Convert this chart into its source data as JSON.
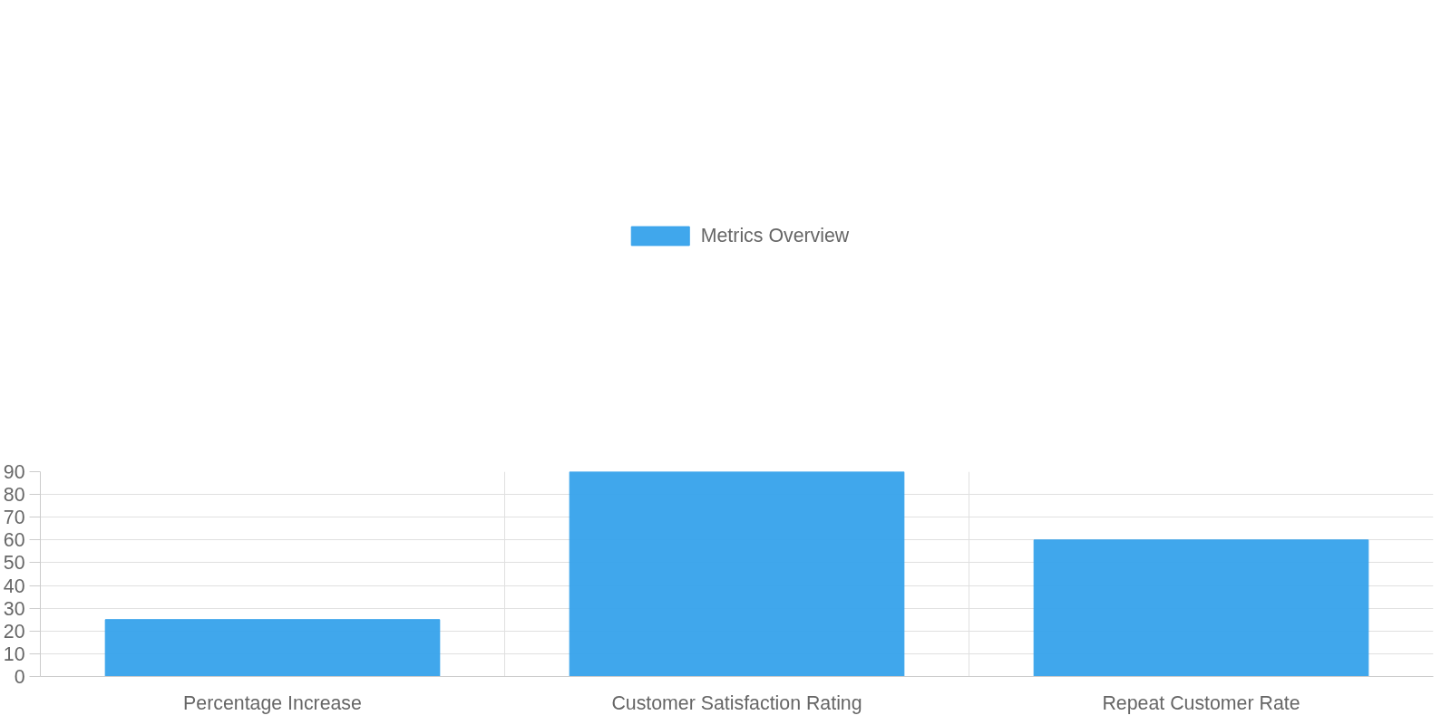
{
  "chart_data": {
    "type": "bar",
    "categories": [
      "Percentage Increase",
      "Customer Satisfaction Rating",
      "Repeat Customer Rate"
    ],
    "series": [
      {
        "name": "Metrics Overview",
        "color": "#36a2eb",
        "values": [
          25,
          90,
          60
        ]
      }
    ],
    "ylim": [
      0,
      90
    ],
    "yticks": [
      0,
      10,
      20,
      30,
      40,
      50,
      60,
      70,
      80,
      90
    ],
    "grid": true,
    "legend": "top"
  }
}
